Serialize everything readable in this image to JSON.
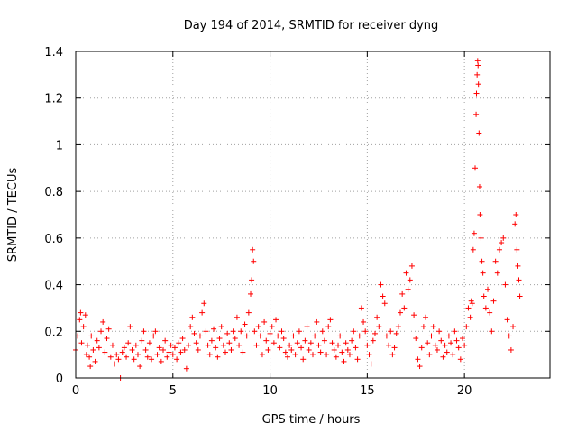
{
  "chart_data": {
    "type": "scatter",
    "title": "Day 194 of 2014, SRMTID for receiver dyng",
    "xlabel": "GPS time / hours",
    "ylabel": "SRMTID / TECUs",
    "xlim": [
      0,
      24.4
    ],
    "ylim": [
      0,
      1.4
    ],
    "x_ticks": [
      0,
      5,
      10,
      15,
      20
    ],
    "x_tick_labels": [
      "0",
      "5",
      "10",
      "15",
      "20"
    ],
    "y_ticks": [
      0,
      0.2,
      0.4,
      0.6,
      0.8,
      1.0,
      1.2,
      1.4
    ],
    "y_tick_labels": [
      "0",
      "0.2",
      "0.4",
      "0.6",
      "0.8",
      "1",
      "1.2",
      "1.4"
    ],
    "grid": true,
    "marker": "plus",
    "color": "#ff0000",
    "series": [
      {
        "name": "SRMTID",
        "points": [
          [
            0.0,
            0.12
          ],
          [
            0.1,
            0.18
          ],
          [
            0.2,
            0.25
          ],
          [
            0.25,
            0.28
          ],
          [
            0.3,
            0.15
          ],
          [
            0.4,
            0.22
          ],
          [
            0.5,
            0.27
          ],
          [
            0.55,
            0.1
          ],
          [
            0.6,
            0.14
          ],
          [
            0.7,
            0.09
          ],
          [
            0.75,
            0.05
          ],
          [
            0.8,
            0.18
          ],
          [
            0.9,
            0.12
          ],
          [
            1.0,
            0.07
          ],
          [
            1.1,
            0.16
          ],
          [
            1.2,
            0.13
          ],
          [
            1.3,
            0.2
          ],
          [
            1.4,
            0.24
          ],
          [
            1.5,
            0.11
          ],
          [
            1.6,
            0.17
          ],
          [
            1.7,
            0.21
          ],
          [
            1.8,
            0.09
          ],
          [
            1.9,
            0.14
          ],
          [
            2.0,
            0.06
          ],
          [
            2.1,
            0.1
          ],
          [
            2.2,
            0.08
          ],
          [
            2.3,
            0.0
          ],
          [
            2.4,
            0.11
          ],
          [
            2.5,
            0.13
          ],
          [
            2.6,
            0.09
          ],
          [
            2.7,
            0.15
          ],
          [
            2.8,
            0.22
          ],
          [
            2.9,
            0.12
          ],
          [
            3.0,
            0.08
          ],
          [
            3.1,
            0.14
          ],
          [
            3.2,
            0.1
          ],
          [
            3.3,
            0.05
          ],
          [
            3.4,
            0.16
          ],
          [
            3.5,
            0.2
          ],
          [
            3.6,
            0.12
          ],
          [
            3.7,
            0.09
          ],
          [
            3.8,
            0.15
          ],
          [
            3.9,
            0.08
          ],
          [
            4.0,
            0.18
          ],
          [
            4.1,
            0.2
          ],
          [
            4.2,
            0.1
          ],
          [
            4.3,
            0.13
          ],
          [
            4.4,
            0.07
          ],
          [
            4.5,
            0.12
          ],
          [
            4.6,
            0.16
          ],
          [
            4.7,
            0.09
          ],
          [
            4.8,
            0.11
          ],
          [
            4.9,
            0.14
          ],
          [
            5.0,
            0.1
          ],
          [
            5.1,
            0.13
          ],
          [
            5.2,
            0.08
          ],
          [
            5.3,
            0.15
          ],
          [
            5.4,
            0.11
          ],
          [
            5.5,
            0.17
          ],
          [
            5.6,
            0.12
          ],
          [
            5.7,
            0.04
          ],
          [
            5.8,
            0.14
          ],
          [
            5.9,
            0.22
          ],
          [
            6.0,
            0.26
          ],
          [
            6.1,
            0.19
          ],
          [
            6.2,
            0.15
          ],
          [
            6.3,
            0.12
          ],
          [
            6.4,
            0.18
          ],
          [
            6.5,
            0.28
          ],
          [
            6.6,
            0.32
          ],
          [
            6.7,
            0.2
          ],
          [
            6.8,
            0.14
          ],
          [
            6.9,
            0.1
          ],
          [
            7.0,
            0.16
          ],
          [
            7.1,
            0.21
          ],
          [
            7.2,
            0.13
          ],
          [
            7.3,
            0.09
          ],
          [
            7.4,
            0.17
          ],
          [
            7.5,
            0.22
          ],
          [
            7.6,
            0.14
          ],
          [
            7.7,
            0.11
          ],
          [
            7.8,
            0.19
          ],
          [
            7.9,
            0.15
          ],
          [
            8.0,
            0.12
          ],
          [
            8.1,
            0.2
          ],
          [
            8.2,
            0.17
          ],
          [
            8.3,
            0.26
          ],
          [
            8.4,
            0.14
          ],
          [
            8.5,
            0.2
          ],
          [
            8.6,
            0.11
          ],
          [
            8.7,
            0.23
          ],
          [
            8.8,
            0.18
          ],
          [
            8.9,
            0.28
          ],
          [
            9.0,
            0.36
          ],
          [
            9.05,
            0.42
          ],
          [
            9.1,
            0.55
          ],
          [
            9.15,
            0.5
          ],
          [
            9.2,
            0.2
          ],
          [
            9.3,
            0.14
          ],
          [
            9.4,
            0.22
          ],
          [
            9.5,
            0.18
          ],
          [
            9.6,
            0.1
          ],
          [
            9.7,
            0.24
          ],
          [
            9.8,
            0.16
          ],
          [
            9.9,
            0.12
          ],
          [
            10.0,
            0.19
          ],
          [
            10.1,
            0.22
          ],
          [
            10.2,
            0.15
          ],
          [
            10.3,
            0.25
          ],
          [
            10.4,
            0.18
          ],
          [
            10.5,
            0.13
          ],
          [
            10.6,
            0.2
          ],
          [
            10.7,
            0.17
          ],
          [
            10.8,
            0.11
          ],
          [
            10.9,
            0.09
          ],
          [
            11.0,
            0.14
          ],
          [
            11.1,
            0.12
          ],
          [
            11.2,
            0.18
          ],
          [
            11.3,
            0.1
          ],
          [
            11.4,
            0.15
          ],
          [
            11.5,
            0.2
          ],
          [
            11.6,
            0.13
          ],
          [
            11.7,
            0.08
          ],
          [
            11.8,
            0.16
          ],
          [
            11.9,
            0.22
          ],
          [
            12.0,
            0.12
          ],
          [
            12.1,
            0.15
          ],
          [
            12.2,
            0.1
          ],
          [
            12.3,
            0.18
          ],
          [
            12.4,
            0.24
          ],
          [
            12.5,
            0.14
          ],
          [
            12.6,
            0.11
          ],
          [
            12.7,
            0.2
          ],
          [
            12.8,
            0.16
          ],
          [
            12.9,
            0.1
          ],
          [
            13.0,
            0.22
          ],
          [
            13.1,
            0.25
          ],
          [
            13.2,
            0.15
          ],
          [
            13.3,
            0.12
          ],
          [
            13.4,
            0.09
          ],
          [
            13.5,
            0.14
          ],
          [
            13.6,
            0.18
          ],
          [
            13.7,
            0.11
          ],
          [
            13.8,
            0.07
          ],
          [
            13.9,
            0.15
          ],
          [
            14.0,
            0.12
          ],
          [
            14.1,
            0.1
          ],
          [
            14.2,
            0.16
          ],
          [
            14.3,
            0.2
          ],
          [
            14.4,
            0.13
          ],
          [
            14.5,
            0.08
          ],
          [
            14.6,
            0.18
          ],
          [
            14.7,
            0.3
          ],
          [
            14.8,
            0.24
          ],
          [
            14.9,
            0.2
          ],
          [
            15.0,
            0.14
          ],
          [
            15.1,
            0.1
          ],
          [
            15.2,
            0.06
          ],
          [
            15.3,
            0.16
          ],
          [
            15.4,
            0.19
          ],
          [
            15.5,
            0.26
          ],
          [
            15.6,
            0.22
          ],
          [
            15.7,
            0.4
          ],
          [
            15.8,
            0.35
          ],
          [
            15.9,
            0.32
          ],
          [
            16.0,
            0.18
          ],
          [
            16.1,
            0.14
          ],
          [
            16.2,
            0.2
          ],
          [
            16.3,
            0.1
          ],
          [
            16.4,
            0.13
          ],
          [
            16.5,
            0.19
          ],
          [
            16.6,
            0.22
          ],
          [
            16.7,
            0.28
          ],
          [
            16.8,
            0.36
          ],
          [
            16.9,
            0.3
          ],
          [
            17.0,
            0.45
          ],
          [
            17.1,
            0.38
          ],
          [
            17.2,
            0.42
          ],
          [
            17.3,
            0.48
          ],
          [
            17.4,
            0.27
          ],
          [
            17.5,
            0.17
          ],
          [
            17.6,
            0.08
          ],
          [
            17.7,
            0.05
          ],
          [
            17.8,
            0.13
          ],
          [
            17.9,
            0.22
          ],
          [
            18.0,
            0.26
          ],
          [
            18.1,
            0.15
          ],
          [
            18.2,
            0.1
          ],
          [
            18.3,
            0.18
          ],
          [
            18.4,
            0.22
          ],
          [
            18.5,
            0.14
          ],
          [
            18.6,
            0.12
          ],
          [
            18.7,
            0.2
          ],
          [
            18.8,
            0.16
          ],
          [
            18.9,
            0.09
          ],
          [
            19.0,
            0.14
          ],
          [
            19.1,
            0.11
          ],
          [
            19.2,
            0.18
          ],
          [
            19.3,
            0.15
          ],
          [
            19.4,
            0.1
          ],
          [
            19.5,
            0.2
          ],
          [
            19.6,
            0.16
          ],
          [
            19.7,
            0.13
          ],
          [
            19.8,
            0.08
          ],
          [
            19.9,
            0.17
          ],
          [
            20.0,
            0.14
          ],
          [
            20.1,
            0.22
          ],
          [
            20.2,
            0.3
          ],
          [
            20.3,
            0.26
          ],
          [
            20.35,
            0.33
          ],
          [
            20.4,
            0.32
          ],
          [
            20.45,
            0.55
          ],
          [
            20.5,
            0.62
          ],
          [
            20.55,
            0.9
          ],
          [
            20.6,
            1.13
          ],
          [
            20.62,
            1.22
          ],
          [
            20.65,
            1.3
          ],
          [
            20.68,
            1.36
          ],
          [
            20.7,
            1.34
          ],
          [
            20.72,
            1.26
          ],
          [
            20.75,
            1.05
          ],
          [
            20.78,
            0.82
          ],
          [
            20.8,
            0.7
          ],
          [
            20.85,
            0.6
          ],
          [
            20.9,
            0.5
          ],
          [
            20.95,
            0.45
          ],
          [
            21.0,
            0.35
          ],
          [
            21.1,
            0.3
          ],
          [
            21.2,
            0.38
          ],
          [
            21.3,
            0.28
          ],
          [
            21.4,
            0.2
          ],
          [
            21.5,
            0.33
          ],
          [
            21.6,
            0.5
          ],
          [
            21.7,
            0.45
          ],
          [
            21.8,
            0.55
          ],
          [
            21.9,
            0.58
          ],
          [
            22.0,
            0.6
          ],
          [
            22.1,
            0.4
          ],
          [
            22.2,
            0.25
          ],
          [
            22.3,
            0.18
          ],
          [
            22.4,
            0.12
          ],
          [
            22.5,
            0.22
          ],
          [
            22.6,
            0.66
          ],
          [
            22.65,
            0.7
          ],
          [
            22.7,
            0.55
          ],
          [
            22.75,
            0.48
          ],
          [
            22.8,
            0.42
          ],
          [
            22.85,
            0.35
          ]
        ]
      }
    ]
  }
}
